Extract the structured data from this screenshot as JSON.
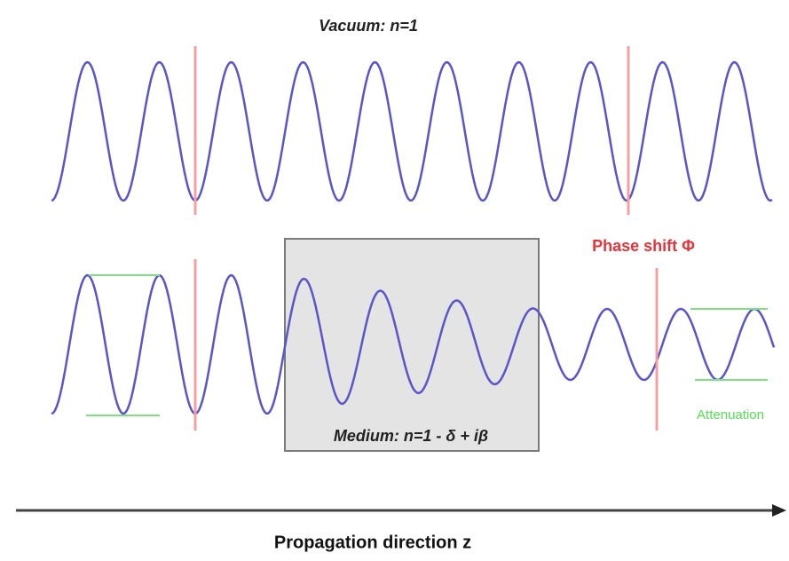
{
  "vacuum_label": "Vacuum: n=1",
  "phase_shift_label": "Phase shift Φ",
  "medium_label": "Medium: n=1 - δ + iβ",
  "attenuation_label": "Attenuation",
  "axis_label": "Propagation direction z"
}
